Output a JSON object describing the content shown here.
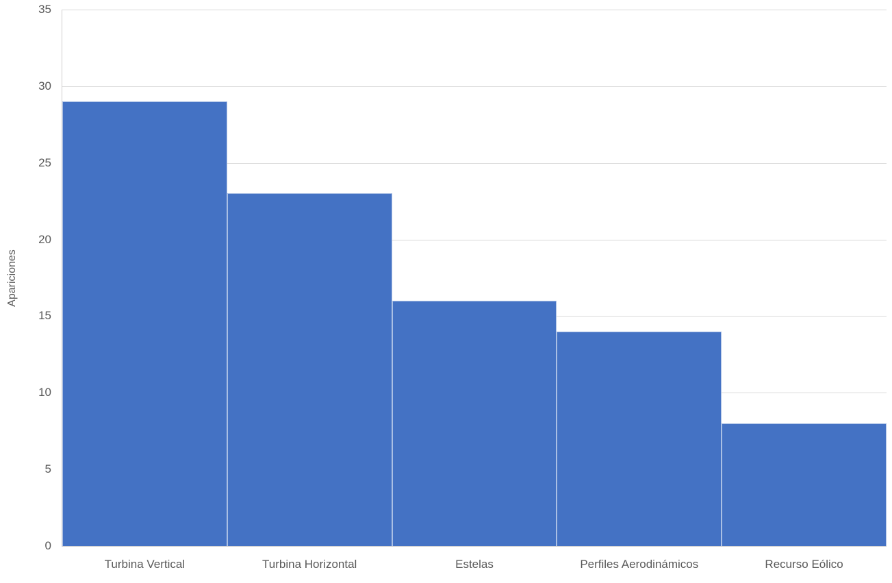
{
  "chart_data": {
    "type": "bar",
    "title": "",
    "categories": [
      "Turbina Vertical",
      "Turbina Horizontal",
      "Estelas",
      "Perfiles Aerodinámicos",
      "Recurso Eólico"
    ],
    "values": [
      29,
      23,
      16,
      14,
      8
    ],
    "xlabel": "",
    "ylabel": "Apariciones",
    "ylim": [
      0,
      35
    ],
    "y_tick_step": 5,
    "y_tick_labels": [
      "0",
      "5",
      "10",
      "15",
      "20",
      "25",
      "30",
      "35"
    ],
    "grid": "horizontal",
    "legend": "none",
    "gap_width_percent": 0,
    "colors": {
      "bar_fill": "#4472c4",
      "bar_border": "#ffffff",
      "gridline": "#d9d9d9",
      "axis_line": "#d0cece",
      "label_text": "#595959",
      "background": "#ffffff"
    }
  }
}
